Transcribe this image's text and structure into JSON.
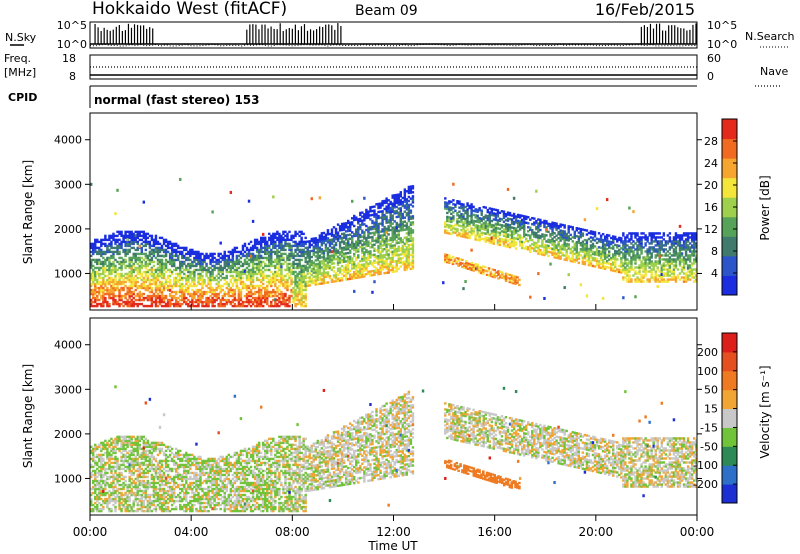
{
  "header": {
    "station": "Hokkaido West (fitACF)",
    "beam": "Beam 09",
    "date": "16/Feb/2015"
  },
  "side_labels": {
    "nsky": "N.Sky",
    "freq_line1": "Freq.",
    "freq_line2": "[MHz]",
    "cpid": "CPID",
    "nsearch": "N.Search",
    "nave": "Nave"
  },
  "cpid_text": "normal (fast stereo) 153",
  "colors": {
    "power": [
      "#1a2ee0",
      "#2b55c8",
      "#3f7a6c",
      "#56a259",
      "#9fd04d",
      "#f3e53a",
      "#f6a52f",
      "#f06a22",
      "#e42a1c"
    ],
    "velocity": [
      "#1b2fd3",
      "#2e6fc8",
      "#2d8a55",
      "#71c43a",
      "#c8c8c8",
      "#f0a534",
      "#ee7a22",
      "#e45020",
      "#dd1f1c"
    ]
  },
  "chart_data": [
    {
      "type": "line",
      "name": "noise-panel",
      "y_left_label": "N.Sky",
      "y_left_ticks": [
        "10^5",
        "10^0"
      ],
      "y_right_label": "N.Search",
      "y_right_ticks": [
        "10^5",
        "10^0"
      ]
    },
    {
      "type": "line",
      "name": "freq-panel",
      "y_left_label": "Freq. [MHz]",
      "y_left_ticks": [
        "18",
        "8"
      ],
      "y_right_label": "Nave",
      "y_right_ticks": [
        "60",
        "0"
      ]
    },
    {
      "type": "heatmap",
      "name": "power-panel",
      "xlabel": "",
      "ylabel": "Slant Range [km]",
      "yticks": [
        "4000",
        "3000",
        "2000",
        "1000"
      ],
      "ylim": [
        180,
        4600
      ],
      "colorbar_label": "Power [dB]",
      "colorbar_ticks": [
        "28",
        "24",
        "20",
        "16",
        "12",
        "8",
        "4"
      ],
      "clim": [
        0,
        30
      ]
    },
    {
      "type": "heatmap",
      "name": "velocity-panel",
      "xlabel": "Time UT",
      "ylabel": "Slant Range [km]",
      "yticks": [
        "4000",
        "3000",
        "2000",
        "1000"
      ],
      "xticks": [
        "00:00",
        "04:00",
        "08:00",
        "12:00",
        "16:00",
        "20:00",
        "00:00"
      ],
      "ylim": [
        180,
        4600
      ],
      "colorbar_label": "Velocity [m s⁻¹]",
      "colorbar_ticks": [
        "200",
        "100",
        "50",
        "15",
        "-15",
        "-50",
        "-100",
        "-200"
      ],
      "clim": [
        -250,
        250
      ]
    }
  ]
}
